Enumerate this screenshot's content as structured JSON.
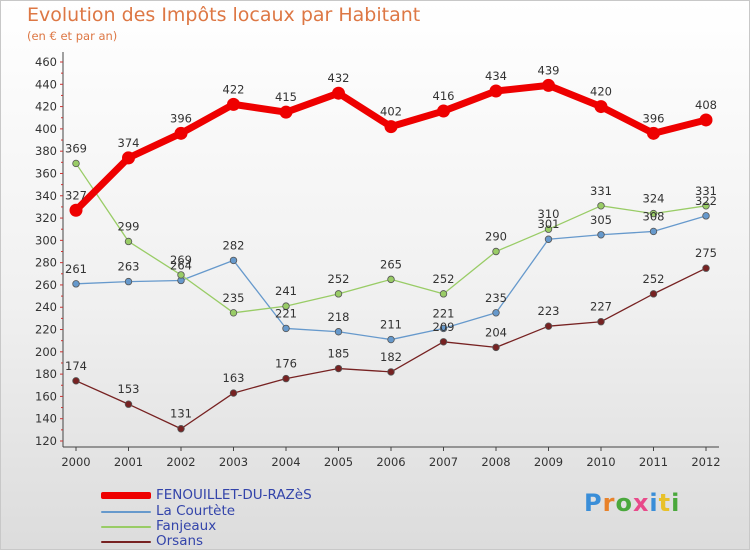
{
  "title": "Evolution des Impôts locaux par Habitant",
  "subtitle": "(en € et par an)",
  "logo": {
    "letters": [
      "P",
      "r",
      "o",
      "x",
      "i",
      "t",
      "i"
    ],
    "colors": [
      "#3a8ed8",
      "#e8822a",
      "#4aa83c",
      "#e84a8a",
      "#3a8ed8",
      "#e8c12a",
      "#4aa83c"
    ]
  },
  "chart_data": {
    "type": "line",
    "title": "Evolution des Impôts locaux par Habitant",
    "subtitle": "(en € et par an)",
    "xlabel": "",
    "ylabel": "",
    "x": [
      "2000",
      "2001",
      "2002",
      "2003",
      "2004",
      "2005",
      "2006",
      "2007",
      "2008",
      "2009",
      "2010",
      "2011",
      "2012"
    ],
    "y_ticks": [
      "120",
      "140",
      "160",
      "180",
      "200",
      "220",
      "240",
      "260",
      "280",
      "300",
      "320",
      "340",
      "360",
      "380",
      "400",
      "420",
      "440",
      "460"
    ],
    "ylim": [
      120,
      460
    ],
    "grid": "none",
    "legend_position": "bottom-left",
    "series": [
      {
        "name": "FENOUILLET-DU-RAZèS",
        "color": "#ee0000",
        "labels": [
          "327",
          "374",
          "396",
          "422",
          "415",
          "432",
          "402",
          "416",
          "434",
          "439",
          "420",
          "396",
          "408"
        ],
        "values": [
          327,
          374,
          396,
          422,
          415,
          432,
          402,
          416,
          434,
          439,
          420,
          396,
          408
        ]
      },
      {
        "name": "La Courtète",
        "color": "#6699cc",
        "labels": [
          "261",
          "263",
          "264",
          "282",
          "221",
          "218",
          "211",
          "221",
          "235",
          "301",
          "305",
          "308",
          "322"
        ],
        "values": [
          261,
          263,
          264,
          282,
          221,
          218,
          211,
          221,
          235,
          301,
          305,
          308,
          322
        ]
      },
      {
        "name": "Fanjeaux",
        "color": "#99cc66",
        "labels": [
          "369",
          "299",
          "269",
          "235",
          "241",
          "252",
          "265",
          "252",
          "290",
          "310",
          "331",
          "324",
          "331"
        ],
        "values": [
          369,
          299,
          269,
          235,
          241,
          252,
          265,
          252,
          290,
          310,
          331,
          324,
          331
        ]
      },
      {
        "name": "Orsans",
        "color": "#772222",
        "labels": [
          "174",
          "153",
          "131",
          "163",
          "176",
          "185",
          "182",
          "209",
          "204",
          "223",
          "227",
          "252",
          "275"
        ],
        "values": [
          174,
          153,
          131,
          163,
          176,
          185,
          182,
          209,
          204,
          223,
          227,
          252,
          275
        ]
      }
    ]
  }
}
